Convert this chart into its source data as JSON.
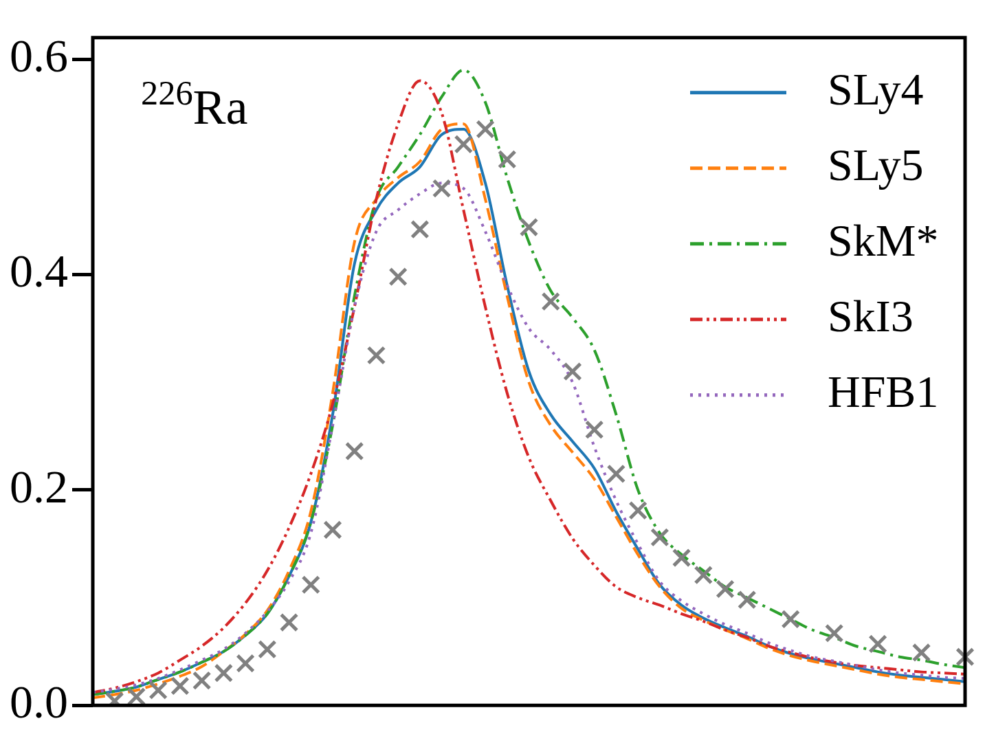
{
  "chart_data": {
    "type": "line",
    "annotations": [
      "$^{226}$Ra"
    ],
    "categories": [
      null,
      null,
      null,
      null,
      null,
      null,
      null,
      null,
      null,
      null,
      null,
      null,
      null,
      null,
      null,
      null,
      null,
      null,
      null,
      null,
      null,
      null,
      null,
      null,
      null,
      null,
      null,
      null,
      null,
      null,
      null,
      null,
      null,
      null,
      null,
      null,
      null,
      null,
      null,
      null,
      null
    ],
    "series": [
      {
        "name": "SLy4",
        "color": "#1f77b4",
        "line_style": "solid",
        "values": [
          0.01,
          0.013,
          0.017,
          0.024,
          0.031,
          0.04,
          0.05,
          0.065,
          0.085,
          0.12,
          0.17,
          0.27,
          0.41,
          0.46,
          0.485,
          0.5,
          0.53,
          0.535,
          0.485,
          0.39,
          0.31,
          0.27,
          0.245,
          0.22,
          0.18,
          0.145,
          0.112,
          0.093,
          0.081,
          0.072,
          0.064,
          0.055,
          0.048,
          0.043,
          0.039,
          0.035,
          0.031,
          0.028,
          0.026,
          0.024,
          0.022
        ]
      },
      {
        "name": "SLy5",
        "color": "#ff7f0e",
        "line_style": "dashed",
        "values": [
          0.007,
          0.01,
          0.014,
          0.02,
          0.027,
          0.036,
          0.05,
          0.066,
          0.088,
          0.125,
          0.18,
          0.29,
          0.43,
          0.47,
          0.49,
          0.505,
          0.535,
          0.54,
          0.47,
          0.38,
          0.3,
          0.26,
          0.235,
          0.21,
          0.175,
          0.14,
          0.11,
          0.09,
          0.079,
          0.07,
          0.062,
          0.053,
          0.046,
          0.041,
          0.037,
          0.033,
          0.029,
          0.026,
          0.024,
          0.022,
          0.02
        ]
      },
      {
        "name": "SkM*",
        "color": "#2ca02c",
        "line_style": "dashdot",
        "values": [
          0.01,
          0.013,
          0.017,
          0.024,
          0.031,
          0.04,
          0.05,
          0.065,
          0.085,
          0.12,
          0.17,
          0.26,
          0.38,
          0.47,
          0.5,
          0.53,
          0.565,
          0.59,
          0.56,
          0.49,
          0.43,
          0.385,
          0.36,
          0.33,
          0.27,
          0.2,
          0.16,
          0.14,
          0.125,
          0.11,
          0.1,
          0.09,
          0.08,
          0.07,
          0.063,
          0.055,
          0.05,
          0.045,
          0.042,
          0.038,
          0.035
        ]
      },
      {
        "name": "SkI3",
        "color": "#d62728",
        "line_style": "dashdotdot",
        "values": [
          0.012,
          0.016,
          0.022,
          0.03,
          0.042,
          0.055,
          0.072,
          0.095,
          0.125,
          0.165,
          0.215,
          0.28,
          0.37,
          0.47,
          0.54,
          0.58,
          0.55,
          0.46,
          0.37,
          0.29,
          0.23,
          0.19,
          0.155,
          0.13,
          0.11,
          0.1,
          0.093,
          0.085,
          0.078,
          0.07,
          0.063,
          0.055,
          0.049,
          0.044,
          0.04,
          0.037,
          0.035,
          0.033,
          0.031,
          0.03,
          0.029
        ]
      },
      {
        "name": "HFB1",
        "color": "#9467bd",
        "line_style": "dotted",
        "values": [
          0.012,
          0.015,
          0.019,
          0.025,
          0.033,
          0.042,
          0.052,
          0.067,
          0.087,
          0.115,
          0.16,
          0.26,
          0.37,
          0.44,
          0.46,
          0.475,
          0.485,
          0.48,
          0.44,
          0.39,
          0.35,
          0.33,
          0.3,
          0.24,
          0.19,
          0.15,
          0.115,
          0.097,
          0.085,
          0.075,
          0.067,
          0.058,
          0.051,
          0.045,
          0.041,
          0.037,
          0.033,
          0.03,
          0.028,
          0.026,
          0.025
        ]
      },
      {
        "type": "scatter",
        "marker": "cross",
        "color": "#808080",
        "values": [
          null,
          0.004,
          0.008,
          0.014,
          0.018,
          0.023,
          0.03,
          0.039,
          0.052,
          0.077,
          0.112,
          0.163,
          0.236,
          0.325,
          0.398,
          0.442,
          0.48,
          0.521,
          0.535,
          0.507,
          0.444,
          0.375,
          0.31,
          0.256,
          0.215,
          0.181,
          0.156,
          0.137,
          0.121,
          0.108,
          0.098,
          null,
          0.08,
          null,
          0.067,
          null,
          0.057,
          null,
          0.049,
          null,
          0.045
        ]
      }
    ],
    "ylim": [
      0,
      0.62
    ],
    "yticks": [
      {
        "value": 0,
        "label": "0.0"
      },
      {
        "value": 0.2,
        "label": "0.2"
      },
      {
        "value": 0.4,
        "label": "0.4"
      },
      {
        "value": 0.6,
        "label": "0.6"
      }
    ],
    "tick_labels": "y",
    "legend": "top right",
    "grid": false
  }
}
